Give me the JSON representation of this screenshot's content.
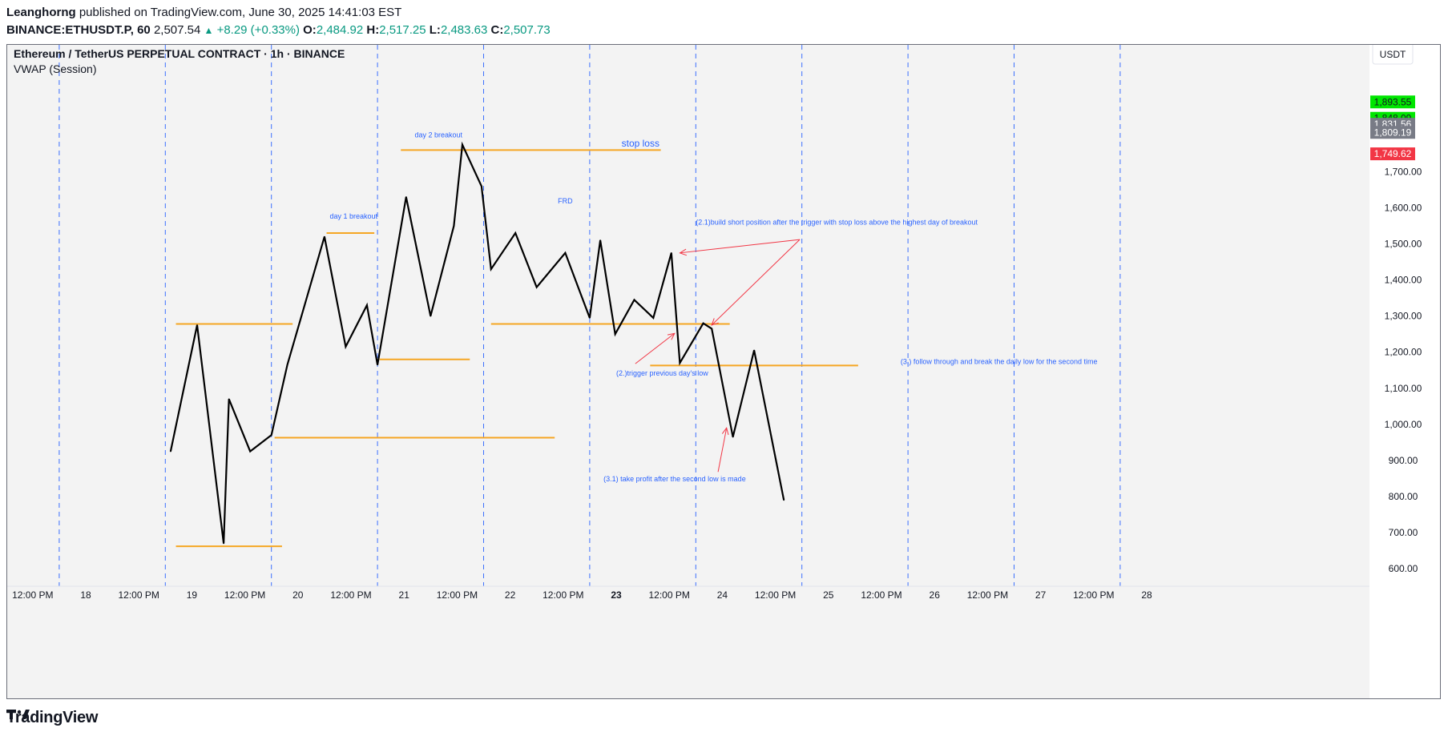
{
  "header": {
    "author": "Leanghorng",
    "published_text": "published on TradingView.com, June 30, 2025 14:41:03 EST",
    "symbol": "BINANCE:ETHUSDT.P, 60",
    "last": "2,507.54",
    "change": "+8.29 (+0.33%)",
    "o_label": "O:",
    "o_value": "2,484.92",
    "h_label": "H:",
    "h_value": "2,517.25",
    "l_label": "L:",
    "l_value": "2,483.63",
    "c_label": "C:",
    "c_value": "2,507.73"
  },
  "legend": {
    "title": "Ethereum / TetherUS PERPETUAL CONTRACT · 1h · BINANCE",
    "indicator": "VWAP (Session)"
  },
  "currency_button": "USDT",
  "footer": {
    "brand": "TradingView"
  },
  "colors": {
    "line": "#000000",
    "level": "#f5a623",
    "annotation": "#2962ff",
    "arrow": "#f23645",
    "session": "#2962ff",
    "badge_green": "#00e600",
    "badge_gray": "#787b86",
    "badge_red": "#f23645"
  },
  "chart_data": {
    "type": "line",
    "x_labels": [
      "12:00 PM",
      "18",
      "12:00 PM",
      "19",
      "12:00 PM",
      "20",
      "12:00 PM",
      "21",
      "12:00 PM",
      "22",
      "12:00 PM",
      "23",
      "12:00 PM",
      "24",
      "12:00 PM",
      "25",
      "12:00 PM",
      "26",
      "12:00 PM",
      "27",
      "12:00 PM",
      "28"
    ],
    "ylim": [
      550,
      1960
    ],
    "y_ticks": [
      "600.00",
      "700.00",
      "800.00",
      "900.00",
      "1,000.00",
      "1,100.00",
      "1,200.00",
      "1,300.00",
      "1,400.00",
      "1,500.00",
      "1,600.00",
      "1,700.00"
    ],
    "y_tick_values": [
      600,
      700,
      800,
      900,
      1000,
      1100,
      1200,
      1300,
      1400,
      1500,
      1600,
      1700
    ],
    "price_badges": [
      {
        "label": "1,893.55",
        "value": 1893.55,
        "color": "#00e600"
      },
      {
        "label": "1,848.09",
        "value": 1848.09,
        "color": "#00e600"
      },
      {
        "label": "1,831.56",
        "value": 1831.56,
        "color": "#787b86"
      },
      {
        "label": "1,809.19",
        "value": 1809.19,
        "color": "#787b86"
      },
      {
        "label": "1,749.62",
        "value": 1749.62,
        "color": "#f23645"
      }
    ],
    "day_boundaries": [
      17.75,
      18.75,
      19.75,
      20.75,
      21.75,
      22.75,
      23.75,
      24.75,
      25.75,
      26.75,
      27.75
    ],
    "series": [
      {
        "x": [
          18.8,
          19.05,
          19.3,
          19.35,
          19.55,
          19.75,
          19.9,
          20.25,
          20.45,
          20.65,
          20.75,
          21.02,
          21.25,
          21.47,
          21.55,
          21.73,
          21.82,
          22.05,
          22.25,
          22.52,
          22.75,
          22.85,
          22.99,
          23.17,
          23.35,
          23.52,
          23.6,
          23.82,
          23.9,
          24.1,
          24.3,
          24.58
        ],
        "y": [
          925,
          1275,
          670,
          1070,
          925,
          970,
          1165,
          1520,
          1215,
          1330,
          1165,
          1630,
          1300,
          1550,
          1775,
          1660,
          1430,
          1530,
          1380,
          1475,
          1295,
          1510,
          1250,
          1345,
          1295,
          1475,
          1170,
          1280,
          1265,
          965,
          1205,
          790
        ]
      }
    ],
    "levels": [
      {
        "x1": 18.85,
        "x2": 19.95,
        "y": 1278
      },
      {
        "x1": 18.85,
        "x2": 19.85,
        "y": 662
      },
      {
        "x1": 19.78,
        "x2": 22.42,
        "y": 963
      },
      {
        "x1": 20.27,
        "x2": 20.72,
        "y": 1530
      },
      {
        "x1": 20.77,
        "x2": 21.62,
        "y": 1180
      },
      {
        "x1": 20.97,
        "x2": 23.42,
        "y": 1760
      },
      {
        "x1": 21.82,
        "x2": 24.07,
        "y": 1278
      },
      {
        "x1": 23.32,
        "x2": 25.28,
        "y": 1163
      }
    ],
    "annotations": [
      {
        "text": "day 1 breakout",
        "x": 20.3,
        "y": 1570
      },
      {
        "text": "day 2 breakout",
        "x": 21.1,
        "y": 1795
      },
      {
        "text": "stop loss",
        "x": 23.05,
        "y": 1770
      },
      {
        "text": "FRD",
        "x": 22.45,
        "y": 1612
      },
      {
        "text": "(2.1)build short position after the trigger with stop loss above the highest day of breakout",
        "x": 23.75,
        "y": 1553
      },
      {
        "text": "(2.)trigger previous day's low",
        "x": 23.0,
        "y": 1135
      },
      {
        "text": "(3.) follow through and break the daily low for the second time",
        "x": 25.68,
        "y": 1167
      },
      {
        "text": "(3.1) take profit after the second low is made",
        "x": 22.88,
        "y": 842
      }
    ],
    "arrows": [
      {
        "x1": 24.73,
        "y1": 1512,
        "x2": 23.6,
        "y2": 1475
      },
      {
        "x1": 24.73,
        "y1": 1512,
        "x2": 23.9,
        "y2": 1275
      },
      {
        "x1": 23.18,
        "y1": 1168,
        "x2": 23.55,
        "y2": 1252
      },
      {
        "x1": 23.96,
        "y1": 868,
        "x2": 24.04,
        "y2": 990
      }
    ]
  }
}
